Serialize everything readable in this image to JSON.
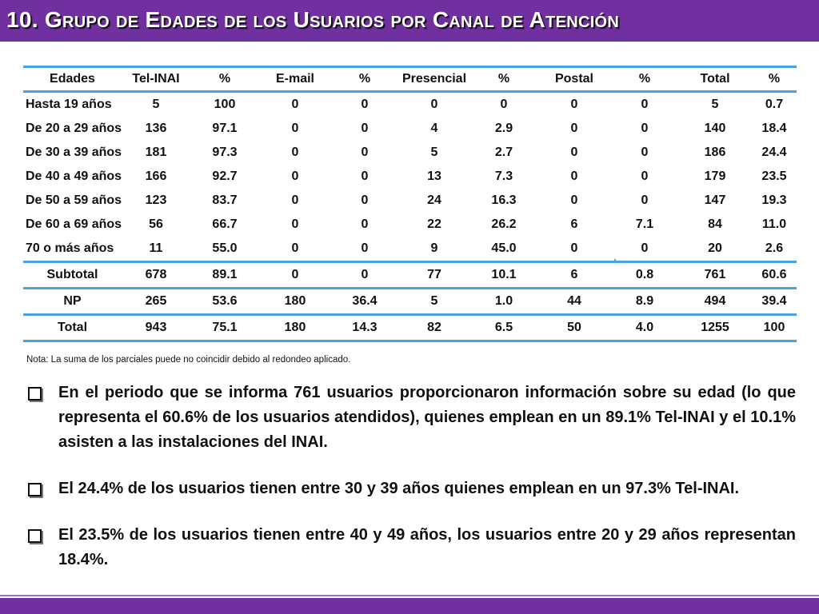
{
  "slide": {
    "title": "10. Grupo de  Edades de los Usuarios por Canal de Atención",
    "accent_color": "#7030a0",
    "table_rule_color": "#4aa3df"
  },
  "table": {
    "headers": [
      "Edades",
      "Tel-INAI",
      "%",
      "E-mail",
      "%",
      "Presencial",
      "%",
      "Postal",
      "%",
      "Total",
      "%"
    ],
    "rows": [
      [
        "Hasta 19 años",
        "5",
        "100",
        "0",
        "0",
        "0",
        "0",
        "0",
        "0",
        "5",
        "0.7"
      ],
      [
        "De 20 a 29 años",
        "136",
        "97.1",
        "0",
        "0",
        "4",
        "2.9",
        "0",
        "0",
        "140",
        "18.4"
      ],
      [
        "De 30 a 39 años",
        "181",
        "97.3",
        "0",
        "0",
        "5",
        "2.7",
        "0",
        "0",
        "186",
        "24.4"
      ],
      [
        "De 40 a 49 años",
        "166",
        "92.7",
        "0",
        "0",
        "13",
        "7.3",
        "0",
        "0",
        "179",
        "23.5"
      ],
      [
        "De 50 a 59 años",
        "123",
        "83.7",
        "0",
        "0",
        "24",
        "16.3",
        "0",
        "0",
        "147",
        "19.3"
      ],
      [
        "De 60 a 69 años",
        "56",
        "66.7",
        "0",
        "0",
        "22",
        "26.2",
        "6",
        "7.1",
        "84",
        "11.0"
      ],
      [
        "70 o más años",
        "11",
        "55.0",
        "0",
        "0",
        "9",
        "45.0",
        "0",
        "0",
        "20",
        "2.6"
      ],
      [
        "Subtotal",
        "678",
        "89.1",
        "0",
        "0",
        "77",
        "10.1",
        "6",
        "0.8",
        "761",
        "60.6"
      ],
      [
        "NP",
        "265",
        "53.6",
        "180",
        "36.4",
        "5",
        "1.0",
        "44",
        "8.9",
        "494",
        "39.4"
      ],
      [
        "Total",
        "943",
        "75.1",
        "180",
        "14.3",
        "82",
        "6.5",
        "50",
        "4.0",
        "1255",
        "100"
      ]
    ]
  },
  "note": "Nota: La suma de los parciales puede no coincidir debido al redondeo aplicado.",
  "bullets": [
    "En el periodo que se informa 761 usuarios proporcionaron información sobre su edad (lo que representa el 60.6% de los usuarios atendidos),  quienes emplean en un 89.1% Tel-INAI y el 10.1% asisten a las instalaciones del INAI.",
    "El 24.4% de los usuarios tienen entre 30 y 39 años quienes emplean en un 97.3% Tel-INAI.",
    "El 23.5% de los usuarios tienen entre 40 y 49 años, los usuarios entre 20 y 29 años representan 18.4%."
  ]
}
